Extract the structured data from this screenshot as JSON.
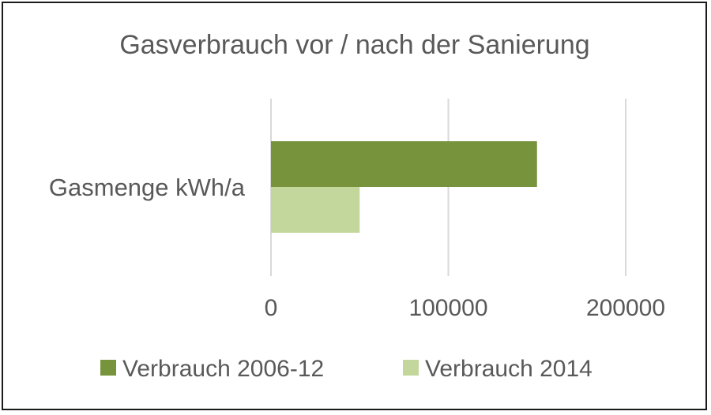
{
  "chart_data": {
    "type": "bar",
    "orientation": "horizontal",
    "title": "Gasverbrauch vor / nach der Sanierung",
    "xlabel": "",
    "ylabel": "",
    "categories": [
      "Gasmenge kWh/a"
    ],
    "series": [
      {
        "name": "Verbrauch 2006-12",
        "values": [
          150000
        ],
        "color": "#77933c"
      },
      {
        "name": "Verbrauch 2014",
        "values": [
          50000
        ],
        "color": "#c3d69b"
      }
    ],
    "xlim": [
      0,
      200000
    ],
    "x_ticks": [
      "0",
      "100000",
      "200000"
    ],
    "grid": true,
    "legend_position": "bottom"
  },
  "colors": {
    "gridline": "#d9d9d9",
    "text": "#595959",
    "border": "#1a1a1a"
  }
}
